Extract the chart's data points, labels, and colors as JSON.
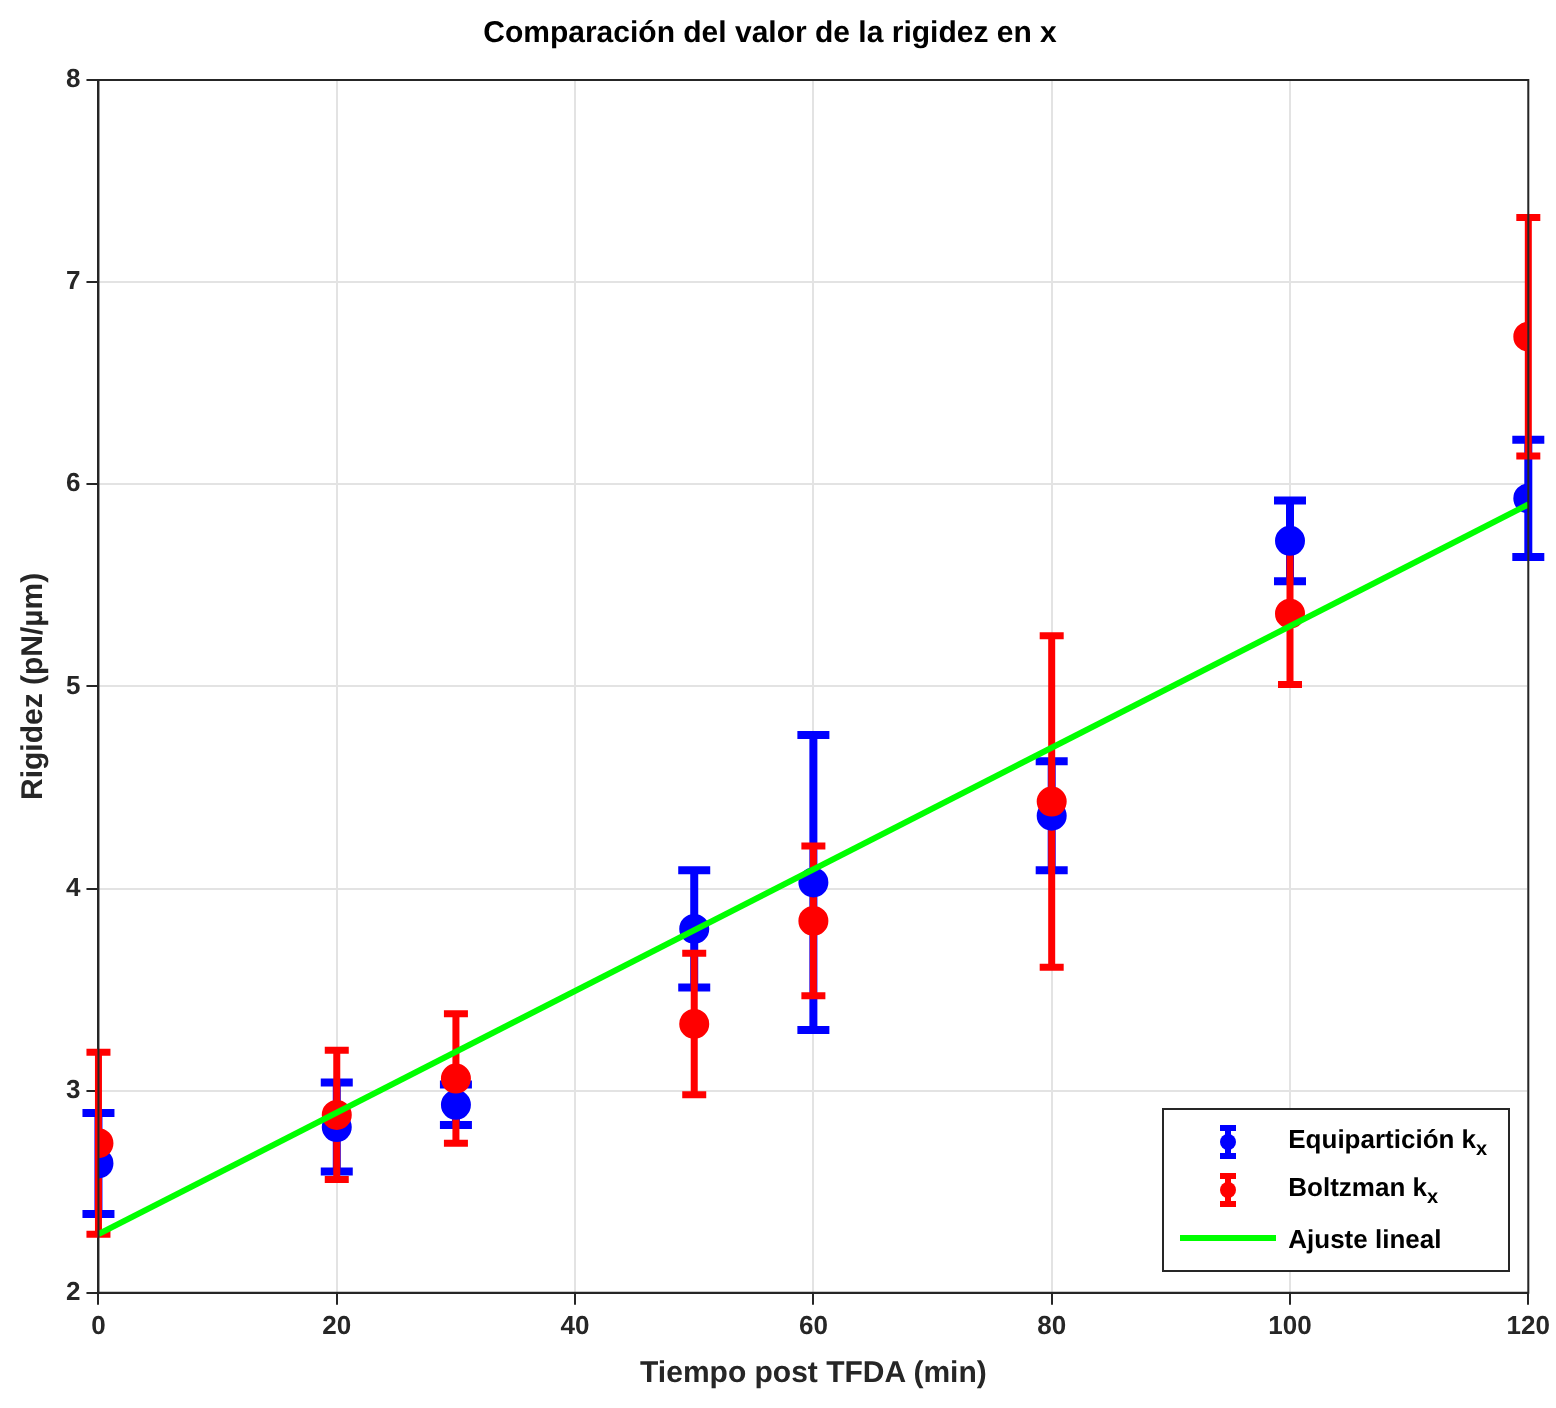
{
  "chart_data": {
    "type": "scatter",
    "title": "Comparación del valor de la rigidez en x",
    "xlabel": "Tiempo post TFDA (min)",
    "ylabel": "Rigidez (pN/µm)",
    "x": [
      0,
      20,
      30,
      50,
      60,
      80,
      100,
      120
    ],
    "series": [
      {
        "name": "Equipartición k$_{x}$",
        "color": "#0000ff",
        "values": [
          2.64,
          2.82,
          2.93,
          3.8,
          4.03,
          4.36,
          5.72,
          5.93
        ],
        "errors": [
          0.25,
          0.22,
          0.1,
          0.29,
          0.73,
          0.27,
          0.2,
          0.29
        ]
      },
      {
        "name": "Boltzman k$_{x}$",
        "color": "#ff0000",
        "values": [
          2.74,
          2.88,
          3.06,
          3.33,
          3.84,
          4.43,
          5.36,
          6.73
        ],
        "errors": [
          0.45,
          0.32,
          0.32,
          0.35,
          0.37,
          0.82,
          0.35,
          0.59
        ]
      },
      {
        "name": "Ajuste lineal",
        "type": "line",
        "color": "#00ff00",
        "x": [
          0,
          120
        ],
        "values": [
          2.29,
          5.9
        ],
        "marker": "none",
        "line_style": "solid"
      }
    ],
    "marker": "circle",
    "xlim": [
      0,
      120
    ],
    "xticks": [
      0,
      20,
      40,
      60,
      80,
      100,
      120
    ],
    "ylim": [
      2,
      8
    ],
    "yticks": [
      2,
      3,
      4,
      5,
      6,
      7,
      8
    ],
    "grid": true,
    "legend": "bottom right"
  }
}
